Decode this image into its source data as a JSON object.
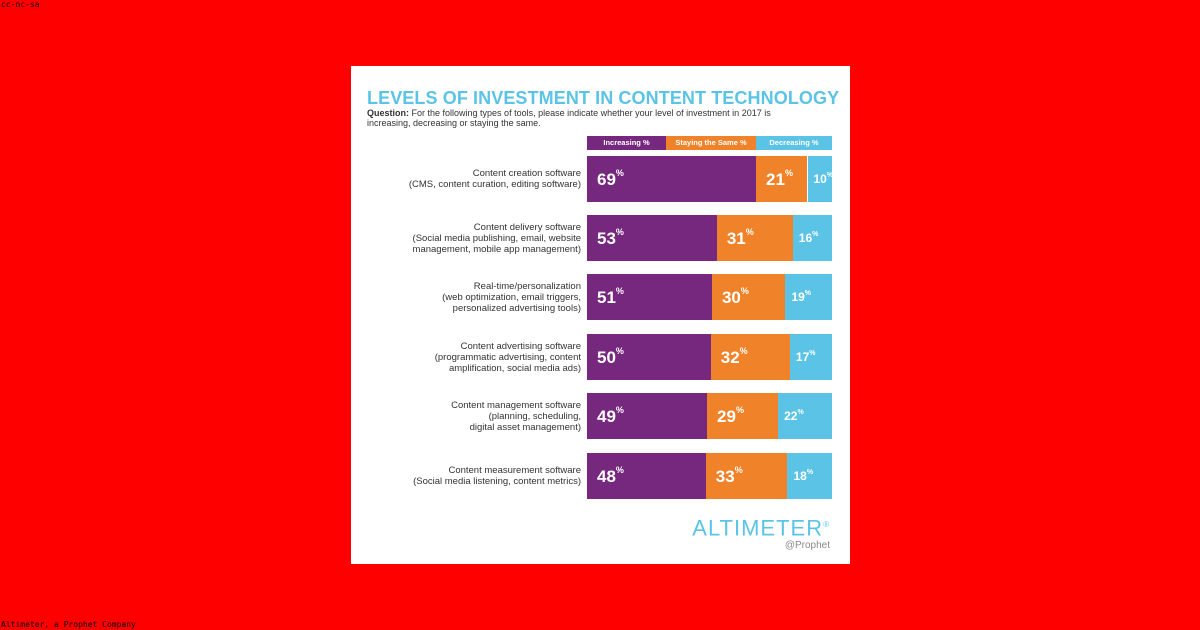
{
  "license": "cc-nc-sa",
  "credit": "Altimeter, a Prophet Company",
  "colors": {
    "background": "#ff0000",
    "increasing": "#76287f",
    "same": "#f0832a",
    "decreasing": "#5bc4e6",
    "title": "#5bc4e6"
  },
  "chart_data": {
    "type": "bar",
    "orientation": "horizontal",
    "stacked": true,
    "title": "LEVELS OF INVESTMENT IN CONTENT TECHNOLOGY",
    "question_label": "Question:",
    "question_text": "For the following types of tools, please indicate whether your level of investment in 2017 is increasing, decreasing or staying the same.",
    "legend": [
      "Increasing %",
      "Staying the Same %",
      "Decreasing %"
    ],
    "categories": [
      {
        "lines": [
          "Content creation software",
          "(CMS, content curation, editing software)"
        ]
      },
      {
        "lines": [
          "Content delivery software",
          "(Social media publishing, email, website",
          "management, mobile app management)"
        ]
      },
      {
        "lines": [
          "Real-time/personalization",
          "(web optimization, email triggers,",
          "personalized advertising tools)"
        ]
      },
      {
        "lines": [
          "Content advertising software",
          "(programmatic advertising, content",
          "amplification, social media ads)"
        ]
      },
      {
        "lines": [
          "Content management software",
          "(planning, scheduling,",
          "digital asset management)"
        ]
      },
      {
        "lines": [
          "Content measurement software",
          "(Social media listening, content metrics)"
        ]
      }
    ],
    "series": [
      {
        "name": "Increasing %",
        "values": [
          69,
          53,
          51,
          50,
          49,
          48
        ]
      },
      {
        "name": "Staying the Same %",
        "values": [
          21,
          31,
          30,
          32,
          29,
          33
        ]
      },
      {
        "name": "Decreasing %",
        "values": [
          10,
          16,
          19,
          17,
          22,
          18
        ]
      }
    ],
    "percent_sign": "%"
  },
  "logo": {
    "name": "ALTIMETER",
    "mark": "®",
    "sub": "@Prophet"
  }
}
